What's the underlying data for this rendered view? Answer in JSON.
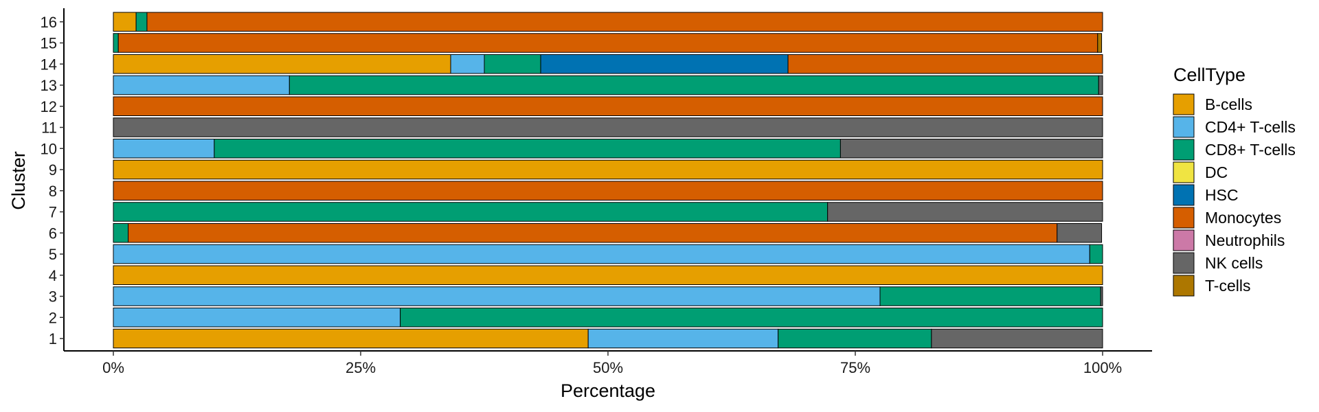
{
  "chart_data": {
    "type": "bar",
    "orientation": "horizontal",
    "stacked": "percent",
    "xlabel": "Percentage",
    "ylabel": "Cluster",
    "x_ticks": [
      "0%",
      "25%",
      "50%",
      "75%",
      "100%"
    ],
    "xlim": [
      0,
      100
    ],
    "grid": false,
    "legend": {
      "title": "CellType",
      "position": "right"
    },
    "categories": [
      "1",
      "2",
      "3",
      "4",
      "5",
      "6",
      "7",
      "8",
      "9",
      "10",
      "11",
      "12",
      "13",
      "14",
      "15",
      "16"
    ],
    "series": [
      {
        "name": "B-cells",
        "color": "#E69F00",
        "values": [
          48,
          0,
          0,
          100,
          0,
          0,
          0,
          0,
          100,
          0,
          0,
          0,
          0,
          34.1,
          0,
          2.3
        ]
      },
      {
        "name": "CD4+ T-cells",
        "color": "#56B4E9",
        "values": [
          19.2,
          29,
          77.5,
          0,
          98.7,
          0,
          0,
          0,
          0,
          10.2,
          0,
          0,
          17.8,
          3.4,
          0,
          0
        ]
      },
      {
        "name": "CD8+ T-cells",
        "color": "#009E73",
        "values": [
          15.5,
          71,
          22.3,
          0,
          1.3,
          1.5,
          72.2,
          0,
          0,
          63.3,
          0,
          0,
          81.8,
          5.7,
          0.5,
          1.1
        ]
      },
      {
        "name": "DC",
        "color": "#F0E442",
        "values": [
          0,
          0,
          0,
          0,
          0,
          0,
          0,
          0,
          0,
          0,
          0,
          0,
          0,
          0,
          0,
          0
        ]
      },
      {
        "name": "HSC",
        "color": "#0072B2",
        "values": [
          0,
          0,
          0,
          0,
          0,
          0,
          0,
          0,
          0,
          0,
          0,
          0,
          0,
          25,
          0,
          0
        ]
      },
      {
        "name": "Monocytes",
        "color": "#D55E00",
        "values": [
          0,
          0,
          0,
          0,
          0,
          93.9,
          0,
          100,
          0,
          0,
          0,
          100,
          0,
          31.8,
          99.0,
          96.6
        ]
      },
      {
        "name": "Neutrophils",
        "color": "#CC79A7",
        "values": [
          0,
          0,
          0,
          0,
          0,
          0,
          0,
          0,
          0,
          0,
          0,
          0,
          0,
          0,
          0,
          0
        ]
      },
      {
        "name": "NK cells",
        "color": "#666666",
        "values": [
          17.3,
          0,
          0.2,
          0,
          0,
          4.5,
          27.8,
          0,
          0,
          26.5,
          100,
          0,
          0.4,
          0,
          0,
          0
        ]
      },
      {
        "name": "T-cells",
        "color": "#AD7700",
        "values": [
          0,
          0,
          0,
          0,
          0,
          0,
          0,
          0,
          0,
          0,
          0,
          0,
          0,
          0,
          0.4,
          0
        ]
      }
    ]
  }
}
